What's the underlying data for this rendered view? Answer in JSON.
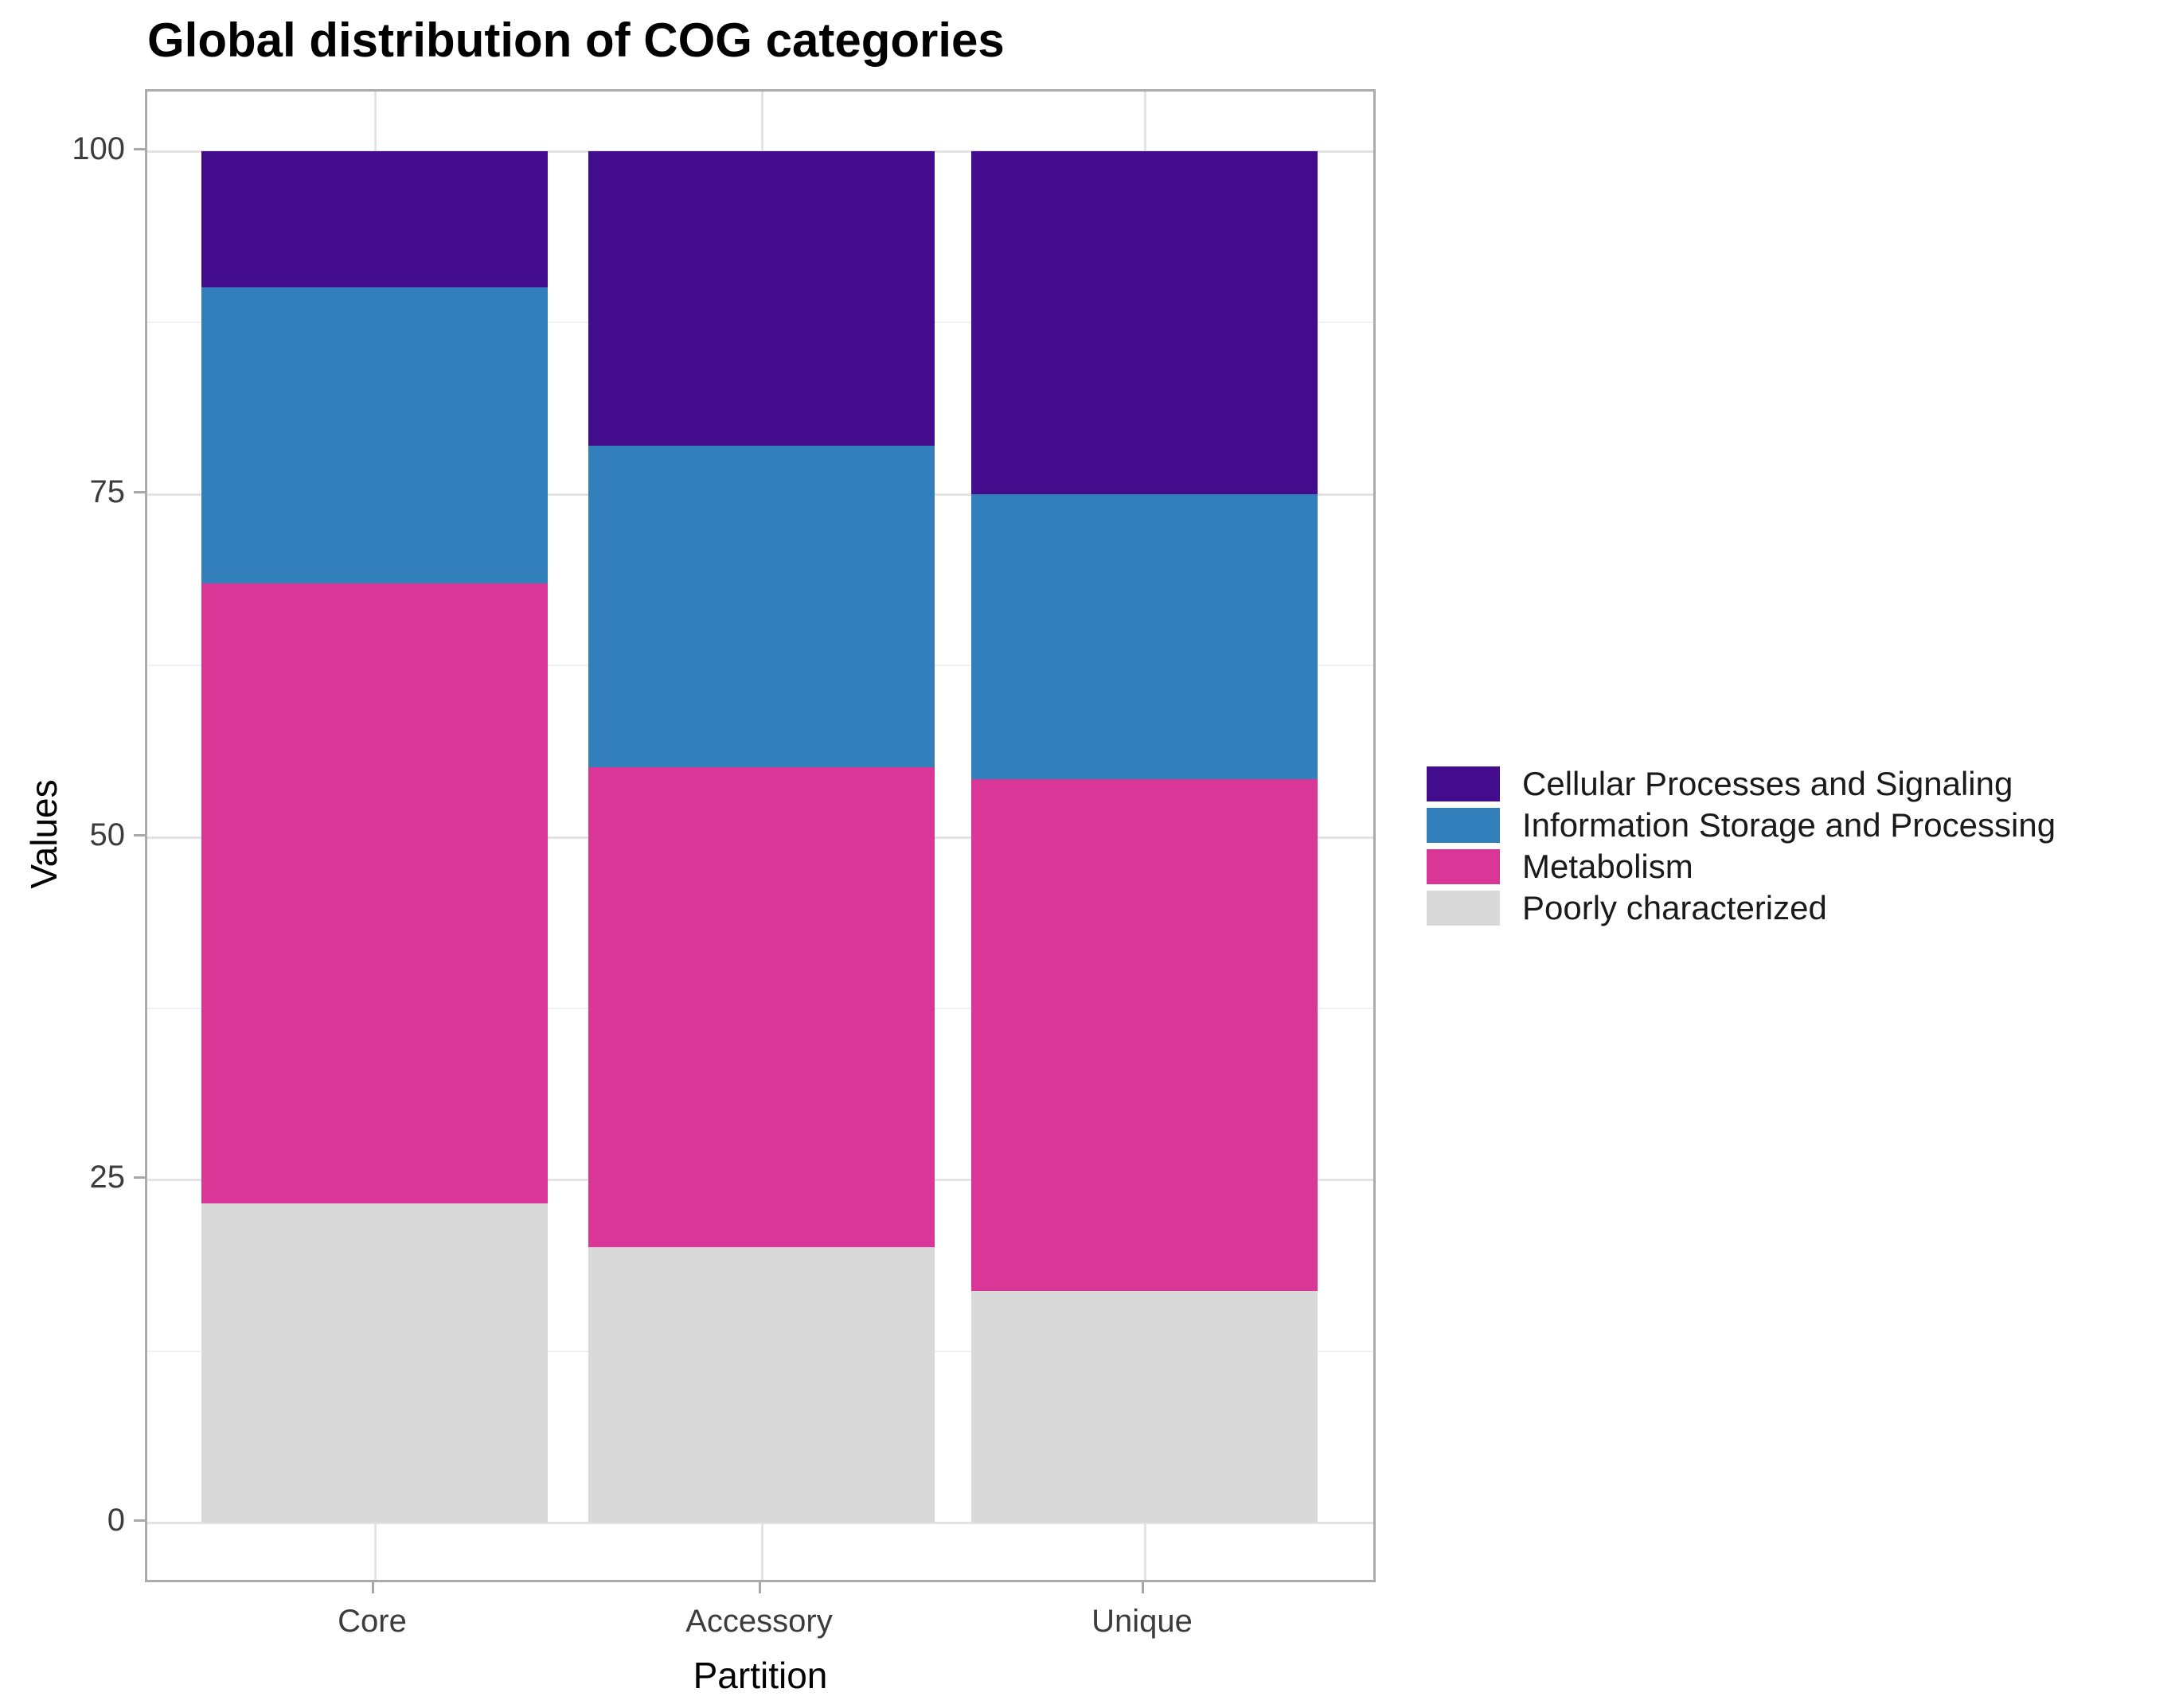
{
  "title": "Global distribution of COG categories",
  "axes": {
    "x_title": "Partition",
    "y_title": "Values",
    "y_ticks": [
      "0",
      "25",
      "50",
      "75",
      "100"
    ]
  },
  "legend": {
    "position": "right",
    "items": [
      {
        "label": "Cellular Processes and Signaling",
        "color": "#430C8C"
      },
      {
        "label": "Information Storage and Processing",
        "color": "#337FBB"
      },
      {
        "label": "Metabolism",
        "color": "#DA3697"
      },
      {
        "label": "Poorly characterized",
        "color": "#D9D9D9"
      }
    ]
  },
  "colors": {
    "purple": "#430C8C",
    "blue": "#337FBB",
    "magenta": "#DA3697",
    "light_gray": "#D9D9D9",
    "panel_border": "#ABABAB",
    "grid_major": "#E3E3E3",
    "grid_minor": "#F1F1F1",
    "tick_text": "#3C3C3C"
  },
  "chart_data": {
    "type": "bar",
    "stacked": true,
    "title": "Global distribution of COG categories",
    "xlabel": "Partition",
    "ylabel": "Values",
    "categories": [
      "Core",
      "Accessory",
      "Unique"
    ],
    "series": [
      {
        "name": "Cellular Processes and Signaling",
        "color": "#430C8C",
        "values": [
          9.9,
          21.5,
          25.0
        ]
      },
      {
        "name": "Information Storage and Processing",
        "color": "#337FBB",
        "values": [
          21.6,
          23.4,
          20.8
        ]
      },
      {
        "name": "Metabolism",
        "color": "#DA3697",
        "values": [
          45.2,
          35.0,
          37.3
        ]
      },
      {
        "name": "Poorly characterized",
        "color": "#D9D9D9",
        "values": [
          23.3,
          20.1,
          16.9
        ]
      }
    ],
    "stack_order_bottom_to_top": [
      "Poorly characterized",
      "Metabolism",
      "Information Storage and Processing",
      "Cellular Processes and Signaling"
    ],
    "cumulative_boundaries": {
      "Core": [
        23.3,
        68.5,
        90.1,
        100
      ],
      "Accessory": [
        20.1,
        55.1,
        78.5,
        100
      ],
      "Unique": [
        16.9,
        54.2,
        75.0,
        100
      ]
    },
    "ylim": [
      0,
      100
    ],
    "yticks": [
      0,
      25,
      50,
      75,
      100
    ],
    "grid": true,
    "legend_position": "right"
  }
}
